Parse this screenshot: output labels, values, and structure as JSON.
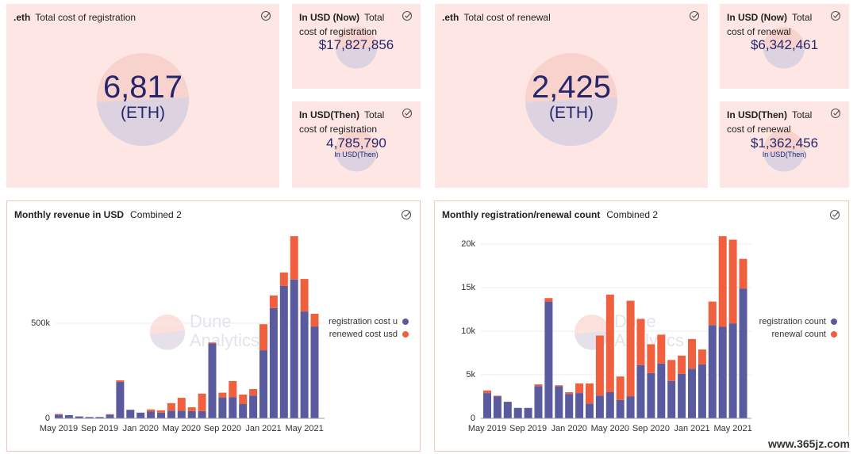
{
  "counters": [
    {
      "title": ".eth",
      "subtitle": "Total cost of registration",
      "value": "6,817",
      "unit": "(ETH)"
    },
    {
      "title": "In USD (Now)",
      "subtitle": "Total cost of registration",
      "value": "$17,827,856"
    },
    {
      "title": "In USD(Then)",
      "subtitle": "Total cost of registration",
      "value": "4,785,790",
      "unit": "In USD(Then)"
    },
    {
      "title": ".eth",
      "subtitle": "Total cost of renewal",
      "value": "2,425",
      "unit": "(ETH)"
    },
    {
      "title": "In USD (Now)",
      "subtitle": "Total cost of renewal",
      "value": "$6,342,461"
    },
    {
      "title": "In USD(Then)",
      "subtitle": "Total cost of renewal",
      "value": "$1,362,456",
      "unit": "In USD(Then)"
    }
  ],
  "chart_data": [
    {
      "type": "bar",
      "stacked": true,
      "title": "Monthly revenue in USD",
      "subtitle": "Combined 2",
      "watermark": [
        "Dune",
        "Analytics"
      ],
      "categories": [
        "May 2019",
        null,
        null,
        null,
        "Sep 2019",
        null,
        null,
        null,
        "Jan 2020",
        null,
        null,
        null,
        "May 2020",
        null,
        null,
        null,
        "Sep 2020",
        null,
        null,
        null,
        "Jan 2021",
        null,
        null,
        null,
        "May 2021",
        null
      ],
      "series": [
        {
          "name": "registration cost u",
          "color": "#5a5a9f",
          "values": [
            20000,
            17000,
            10000,
            7000,
            7000,
            20000,
            192000,
            45000,
            30000,
            37000,
            30000,
            40000,
            40000,
            38000,
            38000,
            395000,
            110000,
            112000,
            75000,
            120000,
            358000,
            580000,
            696000,
            730000,
            562000,
            483000
          ]
        },
        {
          "name": "renewed cost usd",
          "color": "#f0603e",
          "values": [
            3000,
            0,
            0,
            0,
            0,
            2000,
            8000,
            0,
            0,
            10000,
            12000,
            40000,
            68000,
            20000,
            92000,
            4000,
            25000,
            84000,
            50000,
            34000,
            137000,
            66000,
            71000,
            228000,
            171000,
            67000
          ]
        }
      ],
      "ylim": [
        0,
        1000000
      ],
      "yticks": [
        0,
        {
          "value": 500000,
          "label": "500k"
        }
      ],
      "grid": true,
      "legend": "right"
    },
    {
      "type": "bar",
      "stacked": true,
      "title": "Monthly registration/renewal count",
      "subtitle": "Combined 2",
      "watermark": [
        "Dune",
        "Analytics"
      ],
      "categories": [
        "May 2019",
        null,
        null,
        null,
        "Sep 2019",
        null,
        null,
        null,
        "Jan 2020",
        null,
        null,
        null,
        "May 2020",
        null,
        null,
        null,
        "Sep 2020",
        null,
        null,
        null,
        "Jan 2021",
        null,
        null,
        null,
        "May 2021",
        null
      ],
      "series": [
        {
          "name": "registration count",
          "color": "#5a5a9f",
          "values": [
            2900,
            2500,
            1900,
            1200,
            1200,
            3700,
            13400,
            3700,
            2800,
            2900,
            1700,
            2600,
            3000,
            2100,
            2500,
            6100,
            5200,
            6300,
            4300,
            5100,
            5700,
            6200,
            10700,
            10500,
            10900,
            14900
          ]
        },
        {
          "name": "renewal count",
          "color": "#f0603e",
          "values": [
            300,
            100,
            0,
            0,
            0,
            200,
            400,
            100,
            200,
            1100,
            2300,
            6900,
            11200,
            2700,
            11000,
            5300,
            3300,
            3300,
            2400,
            2100,
            3400,
            1700,
            2700,
            10400,
            9600,
            3400
          ]
        }
      ],
      "ylim": [
        0,
        21000
      ],
      "yticks": [
        0,
        {
          "value": 5000,
          "label": "5k"
        },
        {
          "value": 10000,
          "label": "10k"
        },
        {
          "value": 15000,
          "label": "15k"
        },
        {
          "value": 20000,
          "label": "20k"
        }
      ],
      "grid": true,
      "legend": "right"
    }
  ],
  "watermark": "www.365jz.com"
}
